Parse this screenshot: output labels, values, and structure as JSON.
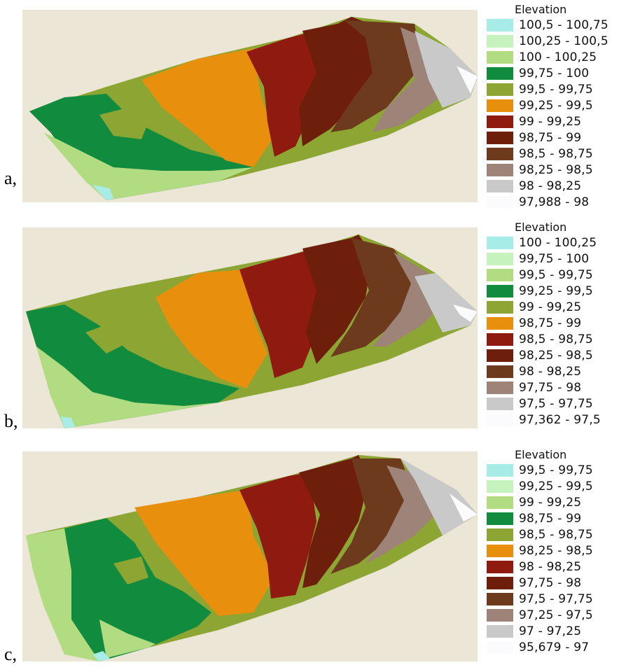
{
  "colors": {
    "background": "#ece6d6",
    "classes": [
      "#a7ece6",
      "#c6f2bd",
      "#b2dc82",
      "#118b3d",
      "#8ca533",
      "#e8900d",
      "#8f1a10",
      "#6e1f0b",
      "#6e3a1d",
      "#9e8478",
      "#c9c9c9",
      "#fbfbfe"
    ]
  },
  "panels": [
    {
      "label": "a,",
      "legend_title": "Elevation",
      "legend": [
        {
          "range": "100,5 - 100,75",
          "color": "#a7ece6"
        },
        {
          "range": "100,25 - 100,5",
          "color": "#c6f2bd"
        },
        {
          "range": "100 - 100,25",
          "color": "#b2dc82"
        },
        {
          "range": "99,75 - 100",
          "color": "#118b3d"
        },
        {
          "range": "99,5 - 99,75",
          "color": "#8ca533"
        },
        {
          "range": "99,25 - 99,5",
          "color": "#e8900d"
        },
        {
          "range": "99 - 99,25",
          "color": "#8f1a10"
        },
        {
          "range": "98,75 - 99",
          "color": "#6e1f0b"
        },
        {
          "range": "98,5 - 98,75",
          "color": "#6e3a1d"
        },
        {
          "range": "98,25 - 98,5",
          "color": "#9e8478"
        },
        {
          "range": "98 - 98,25",
          "color": "#c9c9c9"
        },
        {
          "range": "97,988 - 98",
          "color": "#fbfbfe"
        }
      ]
    },
    {
      "label": "b,",
      "legend_title": "Elevation",
      "legend": [
        {
          "range": "100 - 100,25",
          "color": "#a7ece6"
        },
        {
          "range": "99,75 - 100",
          "color": "#c6f2bd"
        },
        {
          "range": "99,5 - 99,75",
          "color": "#b2dc82"
        },
        {
          "range": "99,25 - 99,5",
          "color": "#118b3d"
        },
        {
          "range": "99 - 99,25",
          "color": "#8ca533"
        },
        {
          "range": "98,75 - 99",
          "color": "#e8900d"
        },
        {
          "range": "98,5 - 98,75",
          "color": "#8f1a10"
        },
        {
          "range": "98,25 - 98,5",
          "color": "#6e1f0b"
        },
        {
          "range": "98 - 98,25",
          "color": "#6e3a1d"
        },
        {
          "range": "97,75 - 98",
          "color": "#9e8478"
        },
        {
          "range": "97,5 - 97,75",
          "color": "#c9c9c9"
        },
        {
          "range": "97,362 - 97,5",
          "color": "#fbfbfe"
        }
      ]
    },
    {
      "label": "c,",
      "legend_title": "Elevation",
      "legend": [
        {
          "range": "99,5 - 99,75",
          "color": "#a7ece6"
        },
        {
          "range": "99,25 - 99,5",
          "color": "#c6f2bd"
        },
        {
          "range": "99 - 99,25",
          "color": "#b2dc82"
        },
        {
          "range": "98,75 - 99",
          "color": "#118b3d"
        },
        {
          "range": "98,5 - 98,75",
          "color": "#8ca533"
        },
        {
          "range": "98,25 - 98,5",
          "color": "#e8900d"
        },
        {
          "range": "98 - 98,25",
          "color": "#8f1a10"
        },
        {
          "range": "97,75 - 98",
          "color": "#6e1f0b"
        },
        {
          "range": "97,5 - 97,75",
          "color": "#6e3a1d"
        },
        {
          "range": "97,25 - 97,5",
          "color": "#9e8478"
        },
        {
          "range": "97 - 97,25",
          "color": "#c9c9c9"
        },
        {
          "range": "95,679 - 97",
          "color": "#fbfbfe"
        }
      ]
    }
  ]
}
